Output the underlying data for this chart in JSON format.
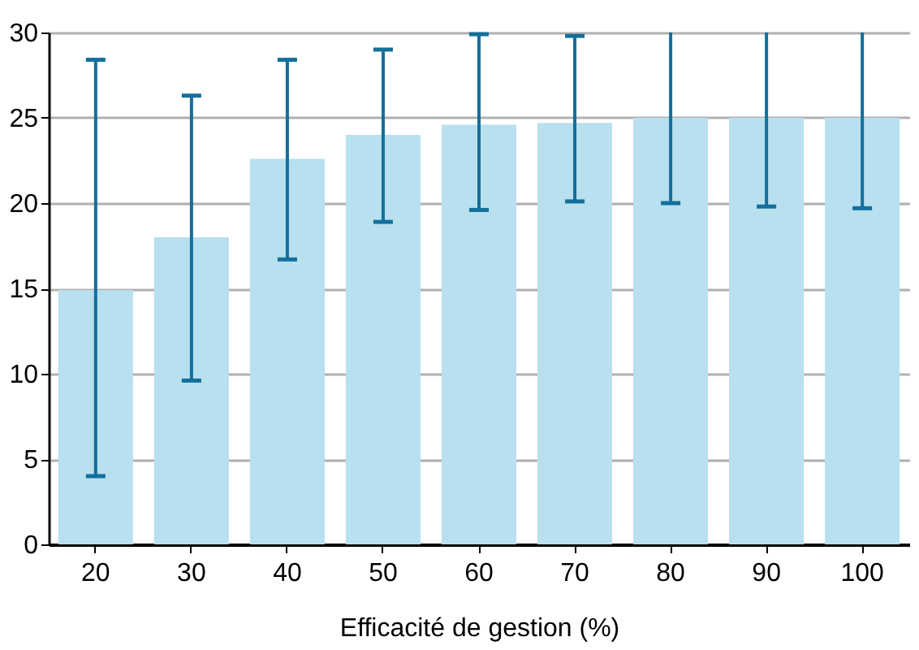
{
  "chart_data": {
    "type": "bar",
    "xlabel": "Efficacité de gestion (%)",
    "categories": [
      "20",
      "30",
      "40",
      "50",
      "60",
      "70",
      "80",
      "90",
      "100"
    ],
    "values": [
      14.9,
      18.0,
      22.6,
      24.0,
      24.6,
      24.7,
      25.0,
      25.0,
      25.0
    ],
    "color": "#b8e0ee",
    "errors": [
      [
        4.0,
        28.4
      ],
      [
        9.6,
        26.3
      ],
      [
        16.7,
        28.4
      ],
      [
        18.9,
        29.0
      ],
      [
        19.6,
        29.9
      ],
      [
        20.1,
        29.8
      ],
      [
        20.0,
        30
      ],
      [
        19.8,
        30
      ],
      [
        19.7,
        30
      ]
    ],
    "ylim": [
      0,
      30
    ],
    "yticks": [
      0,
      5,
      10,
      15,
      20,
      25,
      30
    ],
    "grid": "y"
  }
}
